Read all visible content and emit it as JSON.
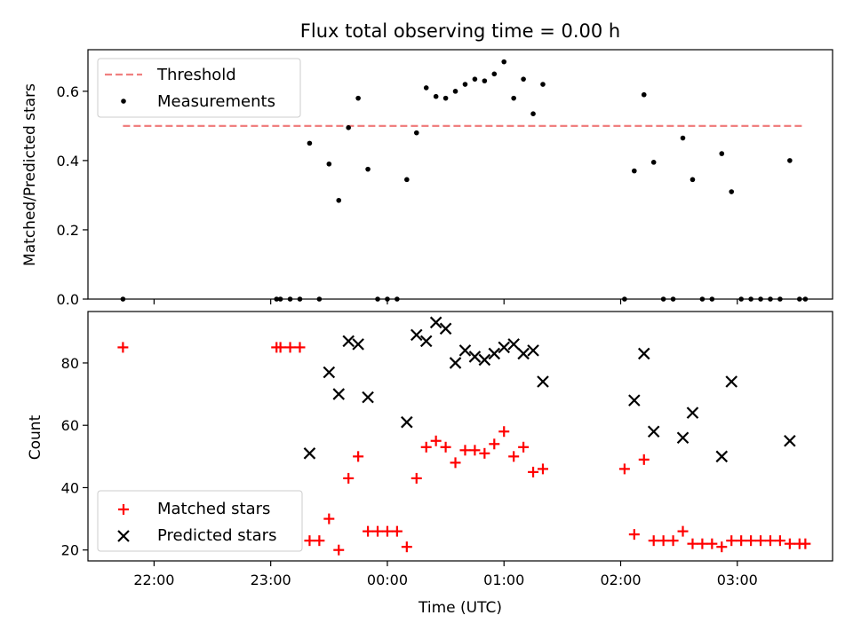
{
  "chart_data": [
    {
      "type": "scatter",
      "title": "Flux total observing time = 0.00 h",
      "ylabel": "Matched/Predicted stars",
      "xlabel": "",
      "ylim": [
        0,
        0.72
      ],
      "xlim": [
        "21:26",
        "03:49"
      ],
      "yticks": [
        "0.0",
        "0.2",
        "0.4",
        "0.6"
      ],
      "threshold": {
        "name": "Threshold",
        "value": 0.5,
        "x": [
          "21:44",
          "03:35"
        ],
        "color": "#f08080"
      },
      "series": [
        {
          "name": "Measurements",
          "color": "#000000",
          "points": [
            [
              "21:44",
              0.0
            ],
            [
              "23:03",
              0.0
            ],
            [
              "23:05",
              0.0
            ],
            [
              "23:10",
              0.0
            ],
            [
              "23:15",
              0.0
            ],
            [
              "23:20",
              0.45
            ],
            [
              "23:25",
              0.0
            ],
            [
              "23:30",
              0.39
            ],
            [
              "23:35",
              0.285
            ],
            [
              "23:40",
              0.495
            ],
            [
              "23:45",
              0.58
            ],
            [
              "23:50",
              0.375
            ],
            [
              "23:55",
              0.0
            ],
            [
              "00:00",
              0.0
            ],
            [
              "00:05",
              0.0
            ],
            [
              "00:10",
              0.345
            ],
            [
              "00:15",
              0.48
            ],
            [
              "00:20",
              0.61
            ],
            [
              "00:25",
              0.585
            ],
            [
              "00:30",
              0.58
            ],
            [
              "00:35",
              0.6
            ],
            [
              "00:40",
              0.62
            ],
            [
              "00:45",
              0.635
            ],
            [
              "00:50",
              0.63
            ],
            [
              "00:55",
              0.65
            ],
            [
              "01:00",
              0.685
            ],
            [
              "01:05",
              0.58
            ],
            [
              "01:10",
              0.635
            ],
            [
              "01:15",
              0.535
            ],
            [
              "01:20",
              0.62
            ],
            [
              "02:02",
              0.0
            ],
            [
              "02:07",
              0.37
            ],
            [
              "02:12",
              0.59
            ],
            [
              "02:17",
              0.395
            ],
            [
              "02:22",
              0.0
            ],
            [
              "02:27",
              0.0
            ],
            [
              "02:32",
              0.465
            ],
            [
              "02:37",
              0.345
            ],
            [
              "02:42",
              0.0
            ],
            [
              "02:47",
              0.0
            ],
            [
              "02:52",
              0.42
            ],
            [
              "02:57",
              0.31
            ],
            [
              "03:02",
              0.0
            ],
            [
              "03:07",
              0.0
            ],
            [
              "03:12",
              0.0
            ],
            [
              "03:17",
              0.0
            ],
            [
              "03:22",
              0.0
            ],
            [
              "03:27",
              0.4
            ],
            [
              "03:32",
              0.0
            ],
            [
              "03:35",
              0.0
            ]
          ]
        }
      ],
      "legend_placement": "top-left",
      "grid": false
    },
    {
      "type": "scatter",
      "title": "",
      "ylabel": "Count",
      "xlabel": "Time (UTC)",
      "ylim": [
        16.5,
        96.5
      ],
      "xlim": [
        "21:26",
        "03:49"
      ],
      "yticks": [
        "20",
        "40",
        "60",
        "80"
      ],
      "xticks": [
        "22:00",
        "23:00",
        "00:00",
        "01:00",
        "02:00",
        "03:00"
      ],
      "series": [
        {
          "name": "Matched stars",
          "marker": "plus",
          "color": "#ff0000",
          "points": [
            [
              "21:44",
              85
            ],
            [
              "23:03",
              85
            ],
            [
              "23:05",
              85
            ],
            [
              "23:10",
              85
            ],
            [
              "23:15",
              85
            ],
            [
              "23:20",
              23
            ],
            [
              "23:25",
              23
            ],
            [
              "23:30",
              30
            ],
            [
              "23:35",
              20
            ],
            [
              "23:40",
              43
            ],
            [
              "23:45",
              50
            ],
            [
              "23:50",
              26
            ],
            [
              "23:55",
              26
            ],
            [
              "00:00",
              26
            ],
            [
              "00:05",
              26
            ],
            [
              "00:10",
              21
            ],
            [
              "00:15",
              43
            ],
            [
              "00:20",
              53
            ],
            [
              "00:25",
              55
            ],
            [
              "00:30",
              53
            ],
            [
              "00:35",
              48
            ],
            [
              "00:40",
              52
            ],
            [
              "00:45",
              52
            ],
            [
              "00:50",
              51
            ],
            [
              "00:55",
              54
            ],
            [
              "01:00",
              58
            ],
            [
              "01:05",
              50
            ],
            [
              "01:10",
              53
            ],
            [
              "01:15",
              45
            ],
            [
              "01:20",
              46
            ],
            [
              "02:02",
              46
            ],
            [
              "02:07",
              25
            ],
            [
              "02:12",
              49
            ],
            [
              "02:17",
              23
            ],
            [
              "02:22",
              23
            ],
            [
              "02:27",
              23
            ],
            [
              "02:32",
              26
            ],
            [
              "02:37",
              22
            ],
            [
              "02:42",
              22
            ],
            [
              "02:47",
              22
            ],
            [
              "02:52",
              21
            ],
            [
              "02:57",
              23
            ],
            [
              "03:02",
              23
            ],
            [
              "03:07",
              23
            ],
            [
              "03:12",
              23
            ],
            [
              "03:17",
              23
            ],
            [
              "03:22",
              23
            ],
            [
              "03:27",
              22
            ],
            [
              "03:32",
              22
            ],
            [
              "03:35",
              22
            ]
          ]
        },
        {
          "name": "Predicted stars",
          "marker": "cross",
          "color": "#000000",
          "points": [
            [
              "23:20",
              51
            ],
            [
              "23:30",
              77
            ],
            [
              "23:35",
              70
            ],
            [
              "23:40",
              87
            ],
            [
              "23:45",
              86
            ],
            [
              "23:50",
              69
            ],
            [
              "00:10",
              61
            ],
            [
              "00:15",
              89
            ],
            [
              "00:20",
              87
            ],
            [
              "00:25",
              93
            ],
            [
              "00:30",
              91
            ],
            [
              "00:35",
              80
            ],
            [
              "00:40",
              84
            ],
            [
              "00:45",
              82
            ],
            [
              "00:50",
              81
            ],
            [
              "00:55",
              83
            ],
            [
              "01:00",
              85
            ],
            [
              "01:05",
              86
            ],
            [
              "01:10",
              83
            ],
            [
              "01:15",
              84
            ],
            [
              "01:20",
              74
            ],
            [
              "02:07",
              68
            ],
            [
              "02:12",
              83
            ],
            [
              "02:17",
              58
            ],
            [
              "02:32",
              56
            ],
            [
              "02:37",
              64
            ],
            [
              "02:52",
              50
            ],
            [
              "02:57",
              74
            ],
            [
              "03:27",
              55
            ]
          ]
        }
      ],
      "legend_placement": "bottom-left",
      "grid": false
    }
  ]
}
